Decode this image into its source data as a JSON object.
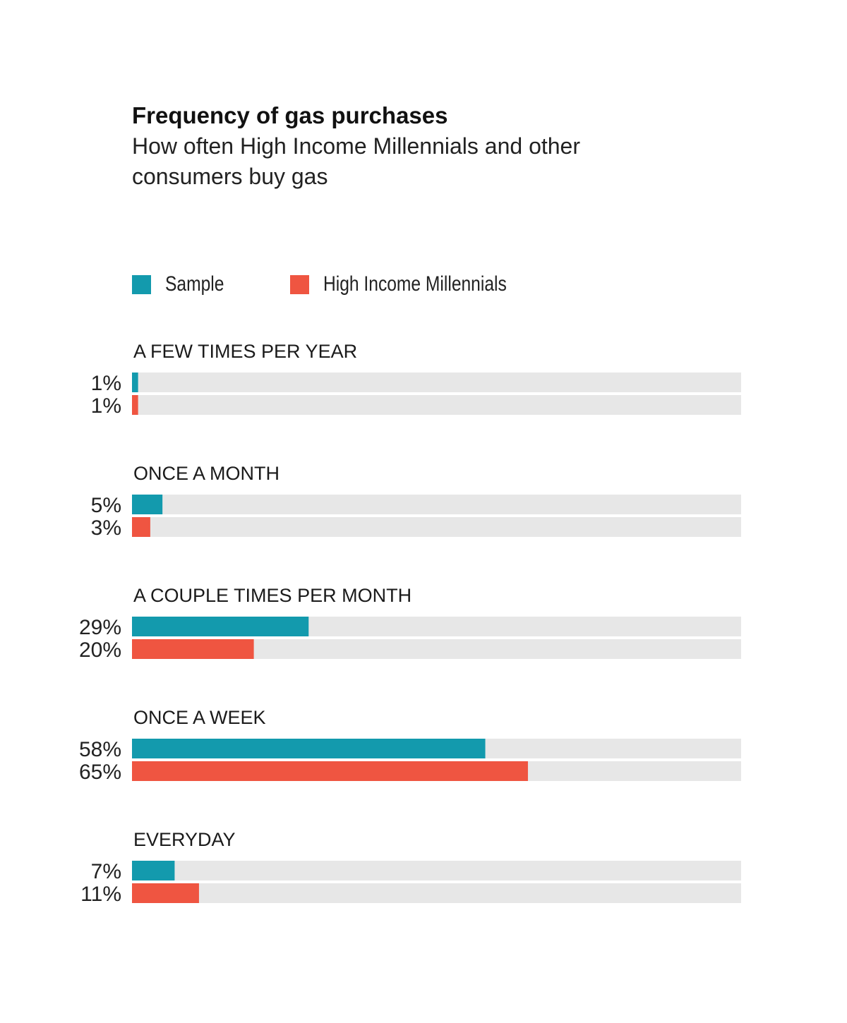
{
  "colors": {
    "sample": "#139aad",
    "high_income_millennials": "#ef5541",
    "track": "#e7e7e7"
  },
  "chart_data": {
    "type": "bar",
    "orientation": "horizontal",
    "title": "Frequency of gas purchases",
    "subtitle": "How often High Income Millennials and other consumers buy gas",
    "categories": [
      "A FEW TIMES PER YEAR",
      "ONCE A MONTH",
      "A COUPLE TIMES PER MONTH",
      "ONCE A WEEK",
      "EVERYDAY"
    ],
    "series": [
      {
        "name": "Sample",
        "color": "#139aad",
        "values": [
          1,
          5,
          29,
          58,
          7
        ],
        "labels": [
          "1%",
          "5%",
          "29%",
          "58%",
          "7%"
        ]
      },
      {
        "name": "High Income Millennials",
        "color": "#ef5541",
        "values": [
          1,
          3,
          20,
          65,
          11
        ],
        "labels": [
          "1%",
          "3%",
          "20%",
          "65%",
          "11%"
        ]
      }
    ],
    "xlim": [
      0,
      100
    ],
    "unit": "%",
    "legend": "top-left",
    "grid": false
  }
}
